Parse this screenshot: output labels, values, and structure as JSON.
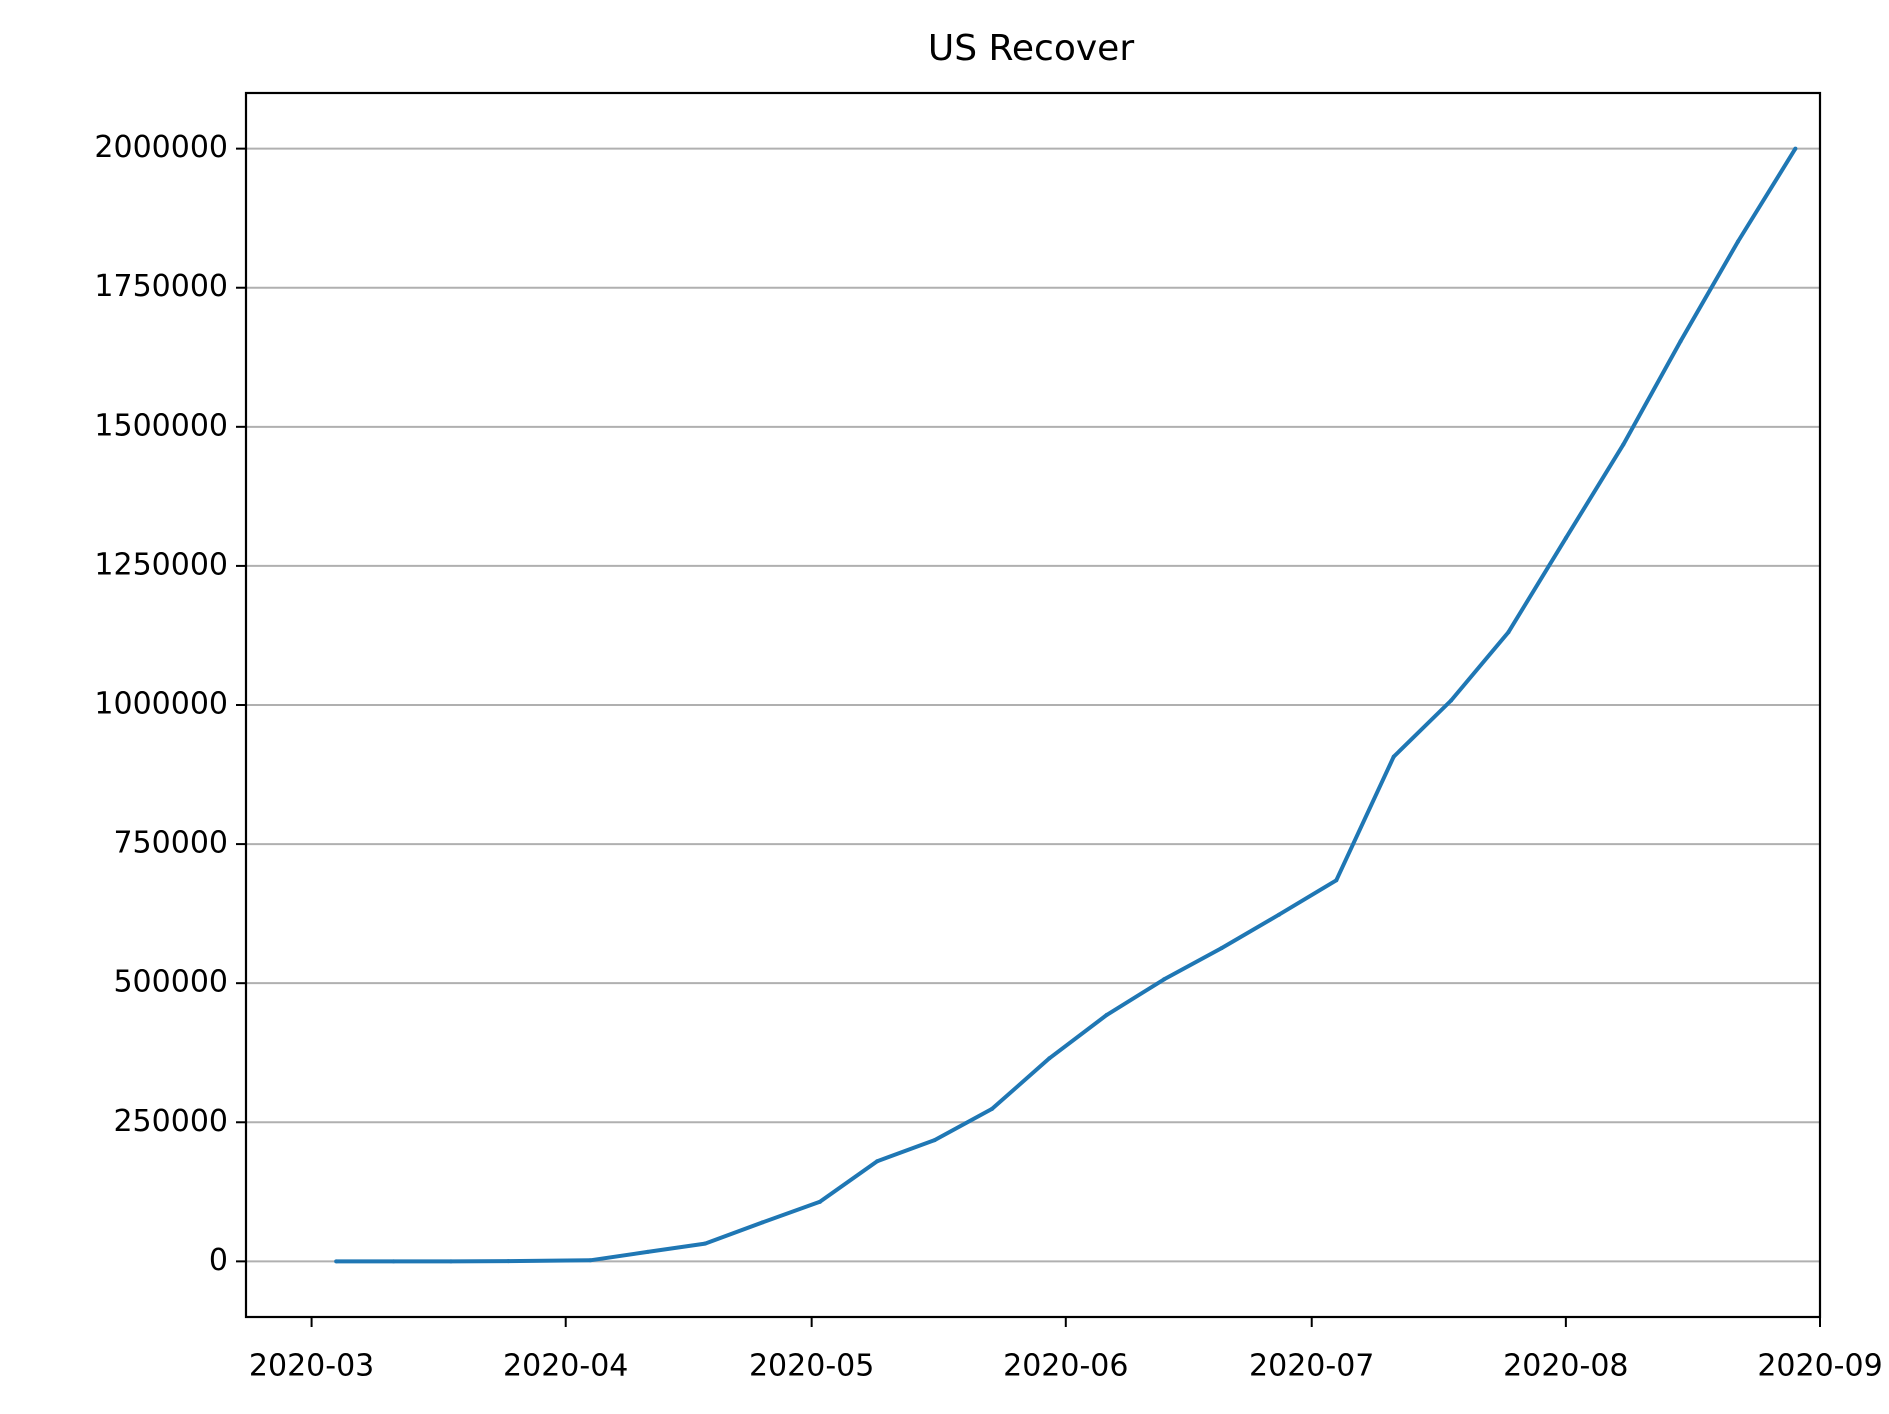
{
  "chart_data": {
    "type": "line",
    "title": "US Recover",
    "xlabel": "",
    "ylabel": "",
    "x_ticks": [
      "2020-03",
      "2020-04",
      "2020-05",
      "2020-06",
      "2020-07",
      "2020-08",
      "2020-09"
    ],
    "y_ticks": [
      0,
      250000,
      500000,
      750000,
      1000000,
      1250000,
      1500000,
      1750000,
      2000000
    ],
    "xlim": [
      "2020-02-22",
      "2020-09-01"
    ],
    "ylim": [
      -100000,
      2100000
    ],
    "grid": "horizontal",
    "legend": "none",
    "colors": {
      "line": "#1f77b4",
      "grid": "#b0b0b0",
      "axes": "#000000",
      "text": "#000000"
    },
    "series": [
      {
        "x": [
          "2020-03-04",
          "2020-03-11",
          "2020-03-18",
          "2020-03-25",
          "2020-04-04",
          "2020-04-11",
          "2020-04-18",
          "2020-04-25",
          "2020-05-02",
          "2020-05-09",
          "2020-05-16",
          "2020-05-23",
          "2020-05-30",
          "2020-06-06",
          "2020-06-13",
          "2020-06-20",
          "2020-06-27",
          "2020-07-04",
          "2020-07-11",
          "2020-07-18",
          "2020-07-25",
          "2020-08-01",
          "2020-08-08",
          "2020-08-15",
          "2020-08-22",
          "2020-08-29"
        ],
        "y": [
          0,
          0,
          0,
          500,
          2000,
          17000,
          32000,
          70000,
          107000,
          180000,
          218000,
          274000,
          365000,
          443000,
          507000,
          563000,
          623000,
          685000,
          907000,
          1008000,
          1131000,
          1300000,
          1468000,
          1654000,
          1833000,
          2000000
        ]
      }
    ]
  }
}
